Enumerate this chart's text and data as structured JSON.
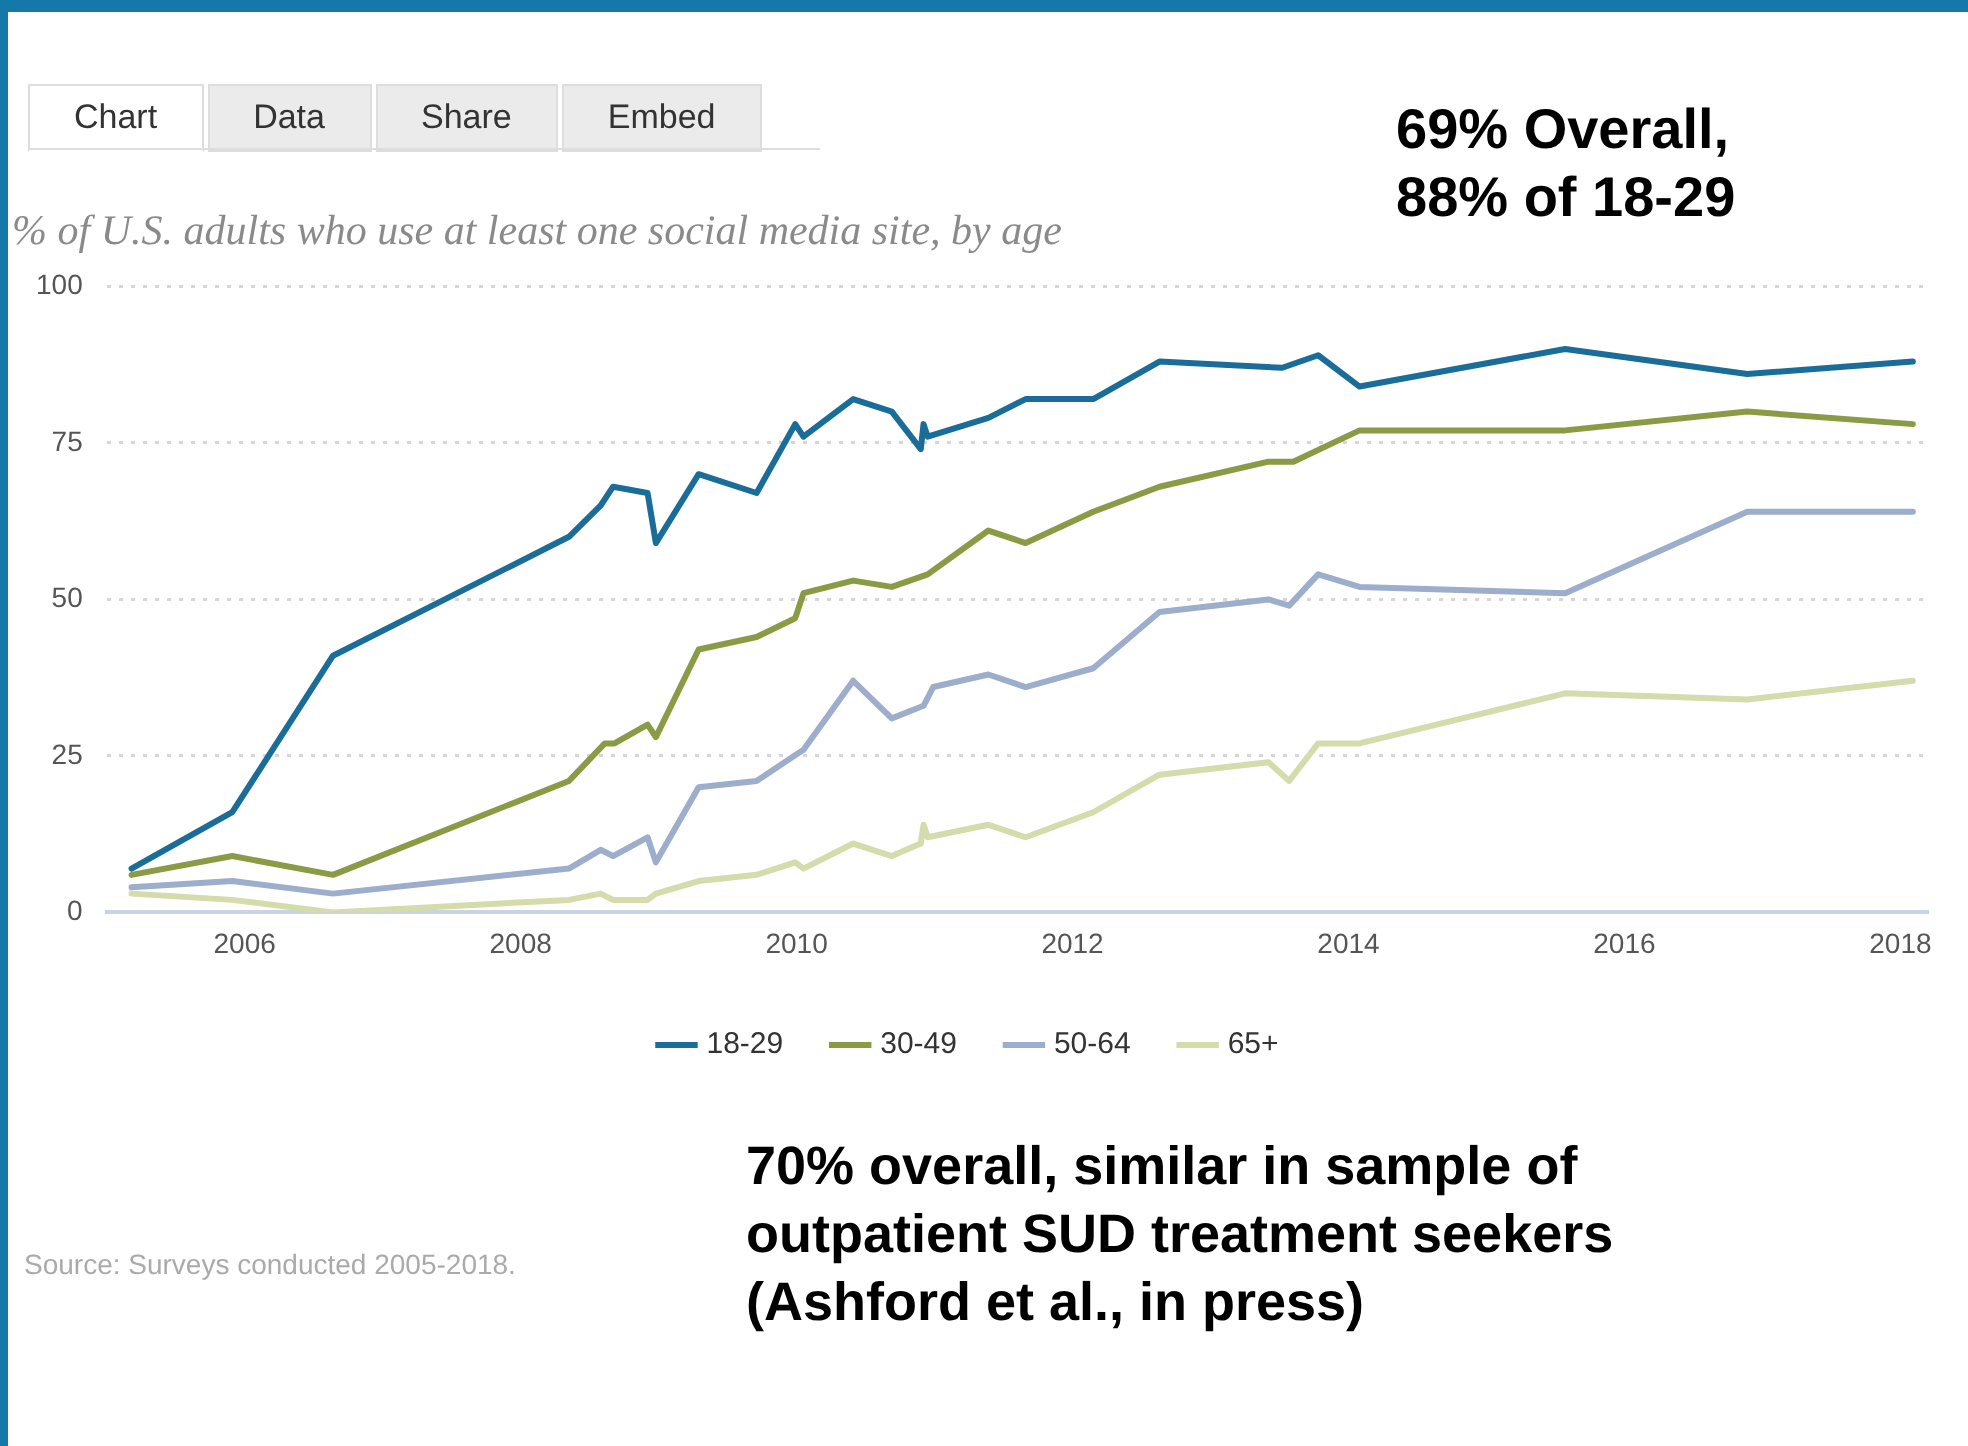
{
  "chart_data": {
    "type": "line",
    "title": "% of U.S. adults who use at least one social media site, by age",
    "annotations": [
      "Chart",
      "Data",
      "Share",
      "Embed",
      "69% Overall,\n88% of 18-29",
      "70% overall, similar in sample of\noutpatient SUD treatment seekers\n(Ashford et al., in press)",
      "Source: Surveys conducted 2005-2018."
    ],
    "xlim": [
      2005,
      2018.2
    ],
    "xticks": [
      2006,
      2008,
      2010,
      2012,
      2014,
      2016,
      2018
    ],
    "ylim": [
      0,
      100
    ],
    "yticks": [
      0,
      25,
      50,
      75,
      100
    ],
    "grid": "y",
    "legend": "bottom",
    "marker": "none",
    "line_style": "solid",
    "series": [
      {
        "name": "18-29",
        "color": "#1a6d99",
        "x": [
          2005.18,
          2005.91,
          2006.64,
          2008.35,
          2008.58,
          2008.67,
          2008.92,
          2008.98,
          2009.29,
          2009.71,
          2009.99,
          2010.05,
          2010.41,
          2010.69,
          2010.9,
          2010.92,
          2010.95,
          2011.39,
          2011.66,
          2012.15,
          2012.63,
          2013.52,
          2013.78,
          2014.08,
          2015.57,
          2016.89,
          2018.09
        ],
        "values": [
          7,
          16,
          41,
          60,
          65,
          68,
          67,
          59,
          70,
          67,
          78,
          76,
          82,
          80,
          74,
          78,
          76,
          79,
          82,
          82,
          88,
          87,
          89,
          84,
          90,
          86,
          88
        ]
      },
      {
        "name": "30-49",
        "color": "#8a9b45",
        "x": [
          2005.18,
          2005.91,
          2006.64,
          2008.35,
          2008.61,
          2008.68,
          2008.92,
          2008.98,
          2009.29,
          2009.71,
          2009.99,
          2010.05,
          2010.41,
          2010.69,
          2010.95,
          2011.39,
          2011.66,
          2012.15,
          2012.63,
          2013.42,
          2013.6,
          2014.08,
          2015.57,
          2016.89,
          2018.09
        ],
        "values": [
          6,
          9,
          6,
          21,
          27,
          27,
          30,
          28,
          42,
          44,
          47,
          51,
          53,
          52,
          54,
          61,
          59,
          64,
          68,
          72,
          72,
          77,
          77,
          80,
          78
        ]
      },
      {
        "name": "50-64",
        "color": "#9dadcc",
        "x": [
          2005.18,
          2005.91,
          2006.64,
          2008.35,
          2008.58,
          2008.67,
          2008.92,
          2008.98,
          2009.29,
          2009.71,
          2010.05,
          2010.41,
          2010.69,
          2010.92,
          2010.99,
          2011.39,
          2011.66,
          2012.15,
          2012.63,
          2013.42,
          2013.57,
          2013.78,
          2014.08,
          2015.57,
          2016.89,
          2018.09
        ],
        "values": [
          4,
          5,
          3,
          7,
          10,
          9,
          12,
          8,
          20,
          21,
          26,
          37,
          31,
          33,
          36,
          38,
          36,
          39,
          48,
          50,
          49,
          54,
          52,
          51,
          64,
          64
        ]
      },
      {
        "name": "65+",
        "color": "#d3dcaa",
        "x": [
          2005.18,
          2005.91,
          2006.64,
          2008.35,
          2008.58,
          2008.67,
          2008.92,
          2008.98,
          2009.29,
          2009.71,
          2009.99,
          2010.05,
          2010.41,
          2010.69,
          2010.9,
          2010.92,
          2010.95,
          2011.39,
          2011.66,
          2012.15,
          2012.63,
          2013.42,
          2013.57,
          2013.78,
          2014.08,
          2015.57,
          2016.89,
          2018.09
        ],
        "values": [
          3,
          2,
          0,
          2,
          3,
          2,
          2,
          3,
          5,
          6,
          8,
          7,
          11,
          9,
          11,
          14,
          12,
          14,
          12,
          16,
          22,
          24,
          21,
          27,
          27,
          35,
          34,
          37
        ]
      }
    ]
  }
}
